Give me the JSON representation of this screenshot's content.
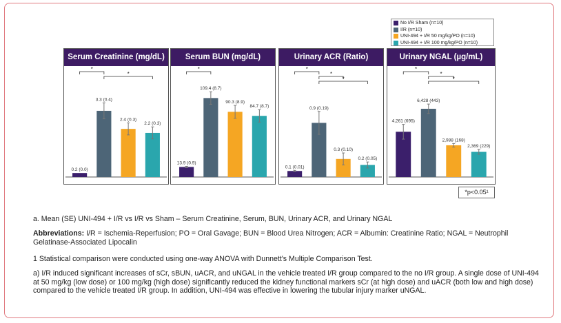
{
  "legend": [
    {
      "label": "No I/R Sham (n=10)",
      "color": "#3b1f6b"
    },
    {
      "label": "I/R (n=10)",
      "color": "#4d6577"
    },
    {
      "label": "UNI-494 + I/R 50 mg/kg/PO (n=10)",
      "color": "#f5a623"
    },
    {
      "label": "UNI-494 + I/R 100 mg/kg/PO (n=10)",
      "color": "#2aa6ad"
    }
  ],
  "chart_data": [
    {
      "type": "bar",
      "title": "Serum Creatinine (mg/dL)",
      "categories": [
        "No I/R Sham (n=10)",
        "I/R (n=10)",
        "UNI-494 + I/R 50 mg/kg/PO (n=10)",
        "UNI-494 + I/R 100 mg/kg/PO (n=10)"
      ],
      "values": [
        0.2,
        3.3,
        2.4,
        2.2
      ],
      "errors": [
        0.0,
        0.4,
        0.3,
        0.3
      ],
      "labels": [
        "0.2 (0.0)",
        "3.3 (0.4)",
        "2.4 (0.3)",
        "2.2 (0.3)"
      ],
      "ylim": [
        0,
        4.5
      ],
      "significance": [
        {
          "from": 0,
          "to": 1,
          "label": "*"
        },
        {
          "from": 1,
          "to": 3,
          "label": "*"
        }
      ]
    },
    {
      "type": "bar",
      "title": "Serum BUN (mg/dL)",
      "categories": [
        "No I/R Sham (n=10)",
        "I/R (n=10)",
        "UNI-494 + I/R 50 mg/kg/PO (n=10)",
        "UNI-494 + I/R 100 mg/kg/PO (n=10)"
      ],
      "values": [
        13.9,
        109.4,
        90.3,
        84.7
      ],
      "errors": [
        0.9,
        8.7,
        8.9,
        8.7
      ],
      "labels": [
        "13.9 (0.9)",
        "109.4 (8.7)",
        "90.3 (8.9)",
        "84.7 (8.7)"
      ],
      "ylim": [
        0,
        125
      ],
      "significance": [
        {
          "from": 0,
          "to": 1,
          "label": "*"
        }
      ]
    },
    {
      "type": "bar",
      "title": "Urinary ACR (Ratio)",
      "categories": [
        "No I/R Sham (n=10)",
        "I/R (n=10)",
        "UNI-494 + I/R 50 mg/kg/PO (n=10)",
        "UNI-494 + I/R 100 mg/kg/PO (n=10)"
      ],
      "values": [
        0.1,
        0.9,
        0.3,
        0.2
      ],
      "errors": [
        0.01,
        0.19,
        0.1,
        0.05
      ],
      "labels": [
        "0.1 (0.01)",
        "0.9 (0.19)",
        "0.3 (0.10)",
        "0.2 (0.05)"
      ],
      "ylim": [
        0,
        1.5
      ],
      "significance": [
        {
          "from": 0,
          "to": 1,
          "label": "*"
        },
        {
          "from": 1,
          "to": 2,
          "label": "*"
        },
        {
          "from": 1,
          "to": 3,
          "label": "*"
        }
      ]
    },
    {
      "type": "bar",
      "title": "Urinary NGAL (µg/mL)",
      "categories": [
        "No I/R Sham (n=10)",
        "I/R (n=10)",
        "UNI-494 + I/R 50 mg/kg/PO (n=10)",
        "UNI-494 + I/R 100 mg/kg/PO (n=10)"
      ],
      "values": [
        4261,
        6428,
        2988,
        2369
      ],
      "errors": [
        695,
        443,
        168,
        229
      ],
      "labels": [
        "4,261 (695)",
        "6,428 (443)",
        "2,988 (168)",
        "2,369 (229)"
      ],
      "ylim": [
        0,
        8500
      ],
      "significance": [
        {
          "from": 0,
          "to": 1,
          "label": "*"
        },
        {
          "from": 1,
          "to": 2,
          "label": "*"
        },
        {
          "from": 1,
          "to": 3,
          "label": "*"
        }
      ]
    }
  ],
  "sig_note": "*p<0.05¹",
  "captions": {
    "a_line": "a. Mean (SE) UNI-494 + I/R vs I/R vs Sham – Serum Creatinine, Serum, BUN, Urinary ACR, and Urinary NGAL",
    "abbrev_label": "Abbreviations:",
    "abbrev_text": " I/R = Ischemia-Reperfusion; PO = Oral Gavage; BUN = Blood Urea Nitrogen; ACR = Albumin: Creatinine Ratio; NGAL = Neutrophil Gelatinase-Associated Lipocalin",
    "footnote": "1 Statistical comparison were conducted using one-way ANOVA with Dunnett's Multiple Comparison Test.",
    "summary": "a) I/R induced significant increases of sCr, sBUN, uACR, and uNGAL in the vehicle treated I/R group compared to the no I/R group. A single dose of UNI-494 at 50 mg/kg (low dose) or 100 mg/kg (high dose) significantly reduced the kidney functional markers sCr (at high dose) and uACR (both low and high dose) compared to the vehicle treated I/R group. In addition, UNI-494 was effective in lowering the tubular injury marker uNGAL."
  }
}
